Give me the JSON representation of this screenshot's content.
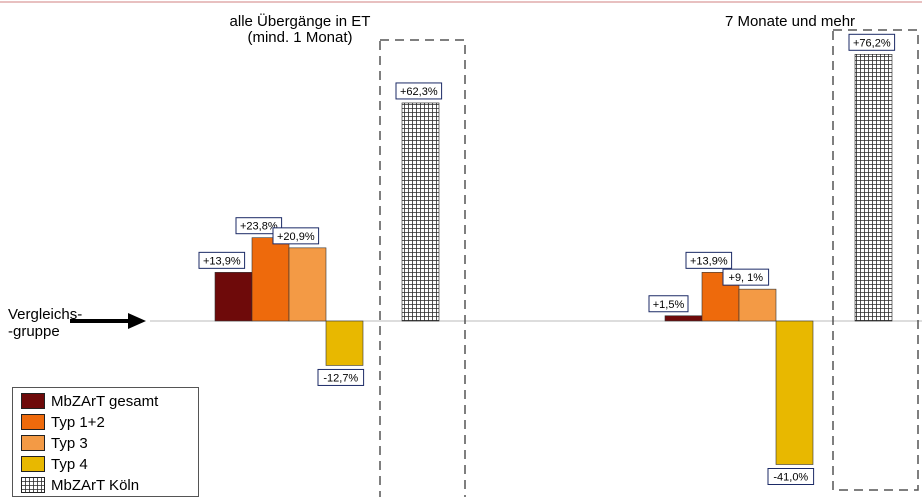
{
  "chart_data": {
    "type": "bar",
    "categories": [
      "alle Übergänge in ET\n(mind.  1 Monat)",
      "7 Monate und mehr"
    ],
    "series": [
      {
        "name": "MbZArT gesamt",
        "color": "#6e0a0a",
        "values": [
          13.9,
          1.5
        ],
        "labels": [
          "+13,9%",
          "+1,5%"
        ]
      },
      {
        "name": "Typ 1+2",
        "color": "#ee6a0c",
        "values": [
          23.8,
          13.9
        ],
        "labels": [
          "+23,8%",
          "+13,9%"
        ]
      },
      {
        "name": "Typ 3",
        "color": "#f39a45",
        "values": [
          20.9,
          9.1
        ],
        "labels": [
          "+20,9%",
          "+9, 1%"
        ]
      },
      {
        "name": "Typ 4",
        "color": "#e8b800",
        "values": [
          -12.7,
          -41.0
        ],
        "labels": [
          "-12,7%",
          "-41,0%"
        ]
      },
      {
        "name": "MbZArT Köln",
        "color": "#888888",
        "pattern": "grid",
        "values": [
          62.3,
          76.2
        ],
        "labels": [
          "+62,3%",
          "+76,2%"
        ]
      }
    ],
    "reference_label": "Vergleichs-\n-gruppe",
    "ylim": [
      -45,
      80
    ],
    "grid": false,
    "legend": "bottom-left"
  }
}
